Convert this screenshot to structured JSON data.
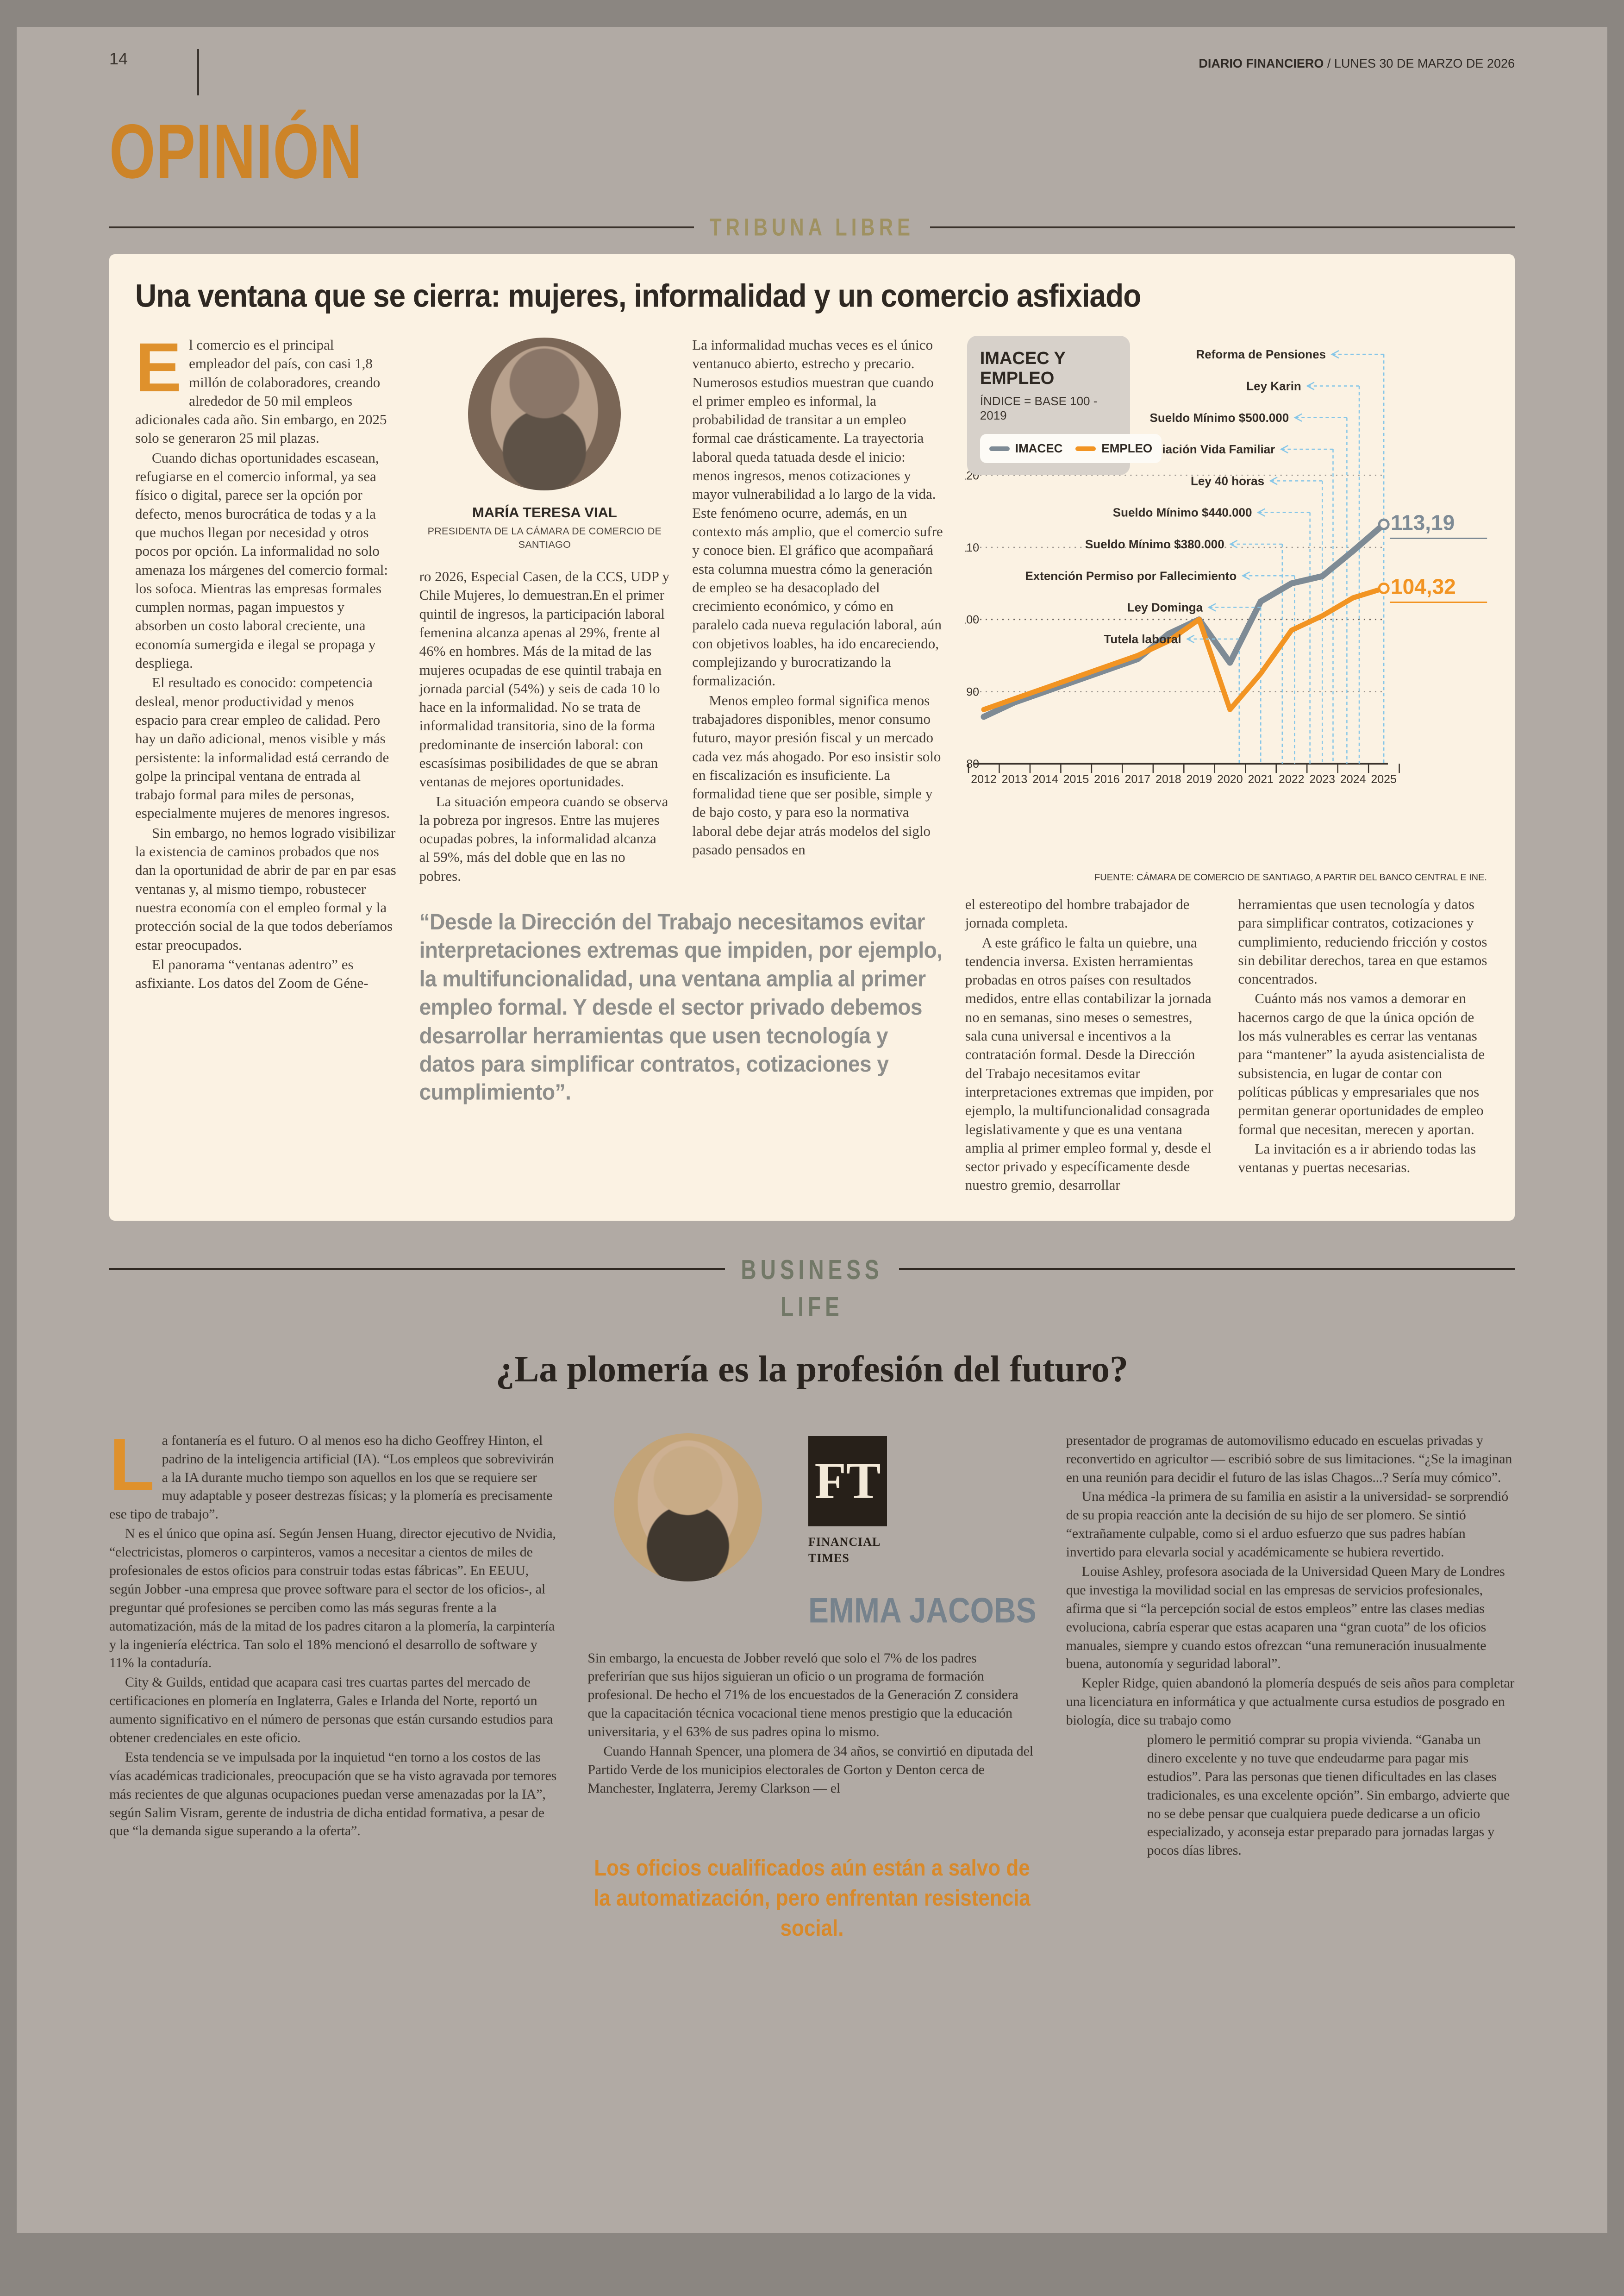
{
  "meta": {
    "page_number": "14",
    "brand": "DIARIO FINANCIERO",
    "date": " / LUNES 30 DE MARZO DE 2026"
  },
  "section": {
    "kicker": "OPINIÓN",
    "tribune": "TRIBUNA LIBRE"
  },
  "article1": {
    "headline": "Una ventana que se cierra: mujeres, informalidad y un comercio asfixiado",
    "drop_cap": "E",
    "author": {
      "name": "MARÍA TERESA VIAL",
      "role": "PRESIDENTA DE LA CÁMARA DE COMERCIO DE SANTIAGO"
    },
    "c1": [
      "l comercio es el principal empleador del país, con casi 1,8 millón de colaboradores, creando alrededor de 50 mil empleos adicionales cada año. Sin embargo, en 2025 solo se generaron 25 mil plazas.",
      "Cuando dichas oportunidades escasean, refugiarse en el comercio informal, ya sea físico o digital, parece ser la opción por defecto, menos burocrática de todas y a la que muchos llegan por necesidad y otros pocos por opción. La informalidad no solo amenaza los márgenes del comercio formal: los sofoca. Mientras las empresas formales cumplen normas, pagan impuestos y absorben un costo laboral creciente, una economía sumergida e ilegal se propaga y despliega.",
      "El resultado es conocido: competencia desleal, menor productividad y menos espacio para crear empleo de calidad. Pero hay un daño adicional, menos visible y más persistente: la informalidad está cerrando de golpe la principal ventana de entrada al trabajo formal para miles de personas, especialmente mujeres de menores ingresos.",
      "Sin embargo, no hemos logrado visibilizar la existencia de caminos probados que nos dan la oportunidad de abrir de par en par esas ventanas y, al mismo tiempo, robustecer nuestra economía con el empleo formal y la protección social de la que todos deberíamos estar preocupados.",
      "El panorama “ventanas adentro” es asfixiante. Los datos del Zoom de Géne-"
    ],
    "c2": [
      "ro 2026, Especial Casen, de la CCS, UDP y Chile Mujeres, lo demuestran.En el primer quintil de ingresos, la participación laboral femenina alcanza apenas al 29%, frente al 46% en hombres. Más de la mitad de las mujeres ocupadas de ese quintil trabaja en jornada parcial (54%) y seis de cada 10 lo hace en la informalidad. No se trata de informalidad transitoria, sino de la forma predominante de inserción laboral: con escasísimas posibilidades de que se abran ventanas de mejores oportunidades.",
      "La situación empeora cuando se observa la pobreza por ingresos. Entre las mujeres ocupadas pobres, la informalidad alcanza al 59%, más del doble que en las no pobres."
    ],
    "c3": [
      "La informalidad muchas veces es el único ventanuco abierto, estrecho y precario. Numerosos estudios muestran que cuando el primer empleo es informal, la probabilidad de transitar a un empleo formal cae drásticamente. La trayectoria laboral queda tatuada desde el inicio: menos ingresos, menos cotizaciones y mayor vulnerabilidad a lo largo de la vida. Este fenómeno ocurre, además, en un contexto más amplio, que el comercio sufre y conoce bien. El gráfico que acompañará esta columna muestra cómo la generación de empleo se ha desacoplado del crecimiento económico, y cómo en paralelo cada nueva regulación laboral, aún con objetivos loables, ha ido encareciendo, complejizando y burocratizando la formalización.",
      "Menos empleo formal significa menos trabajadores disponibles, menor consumo futuro, mayor presión fiscal y un mercado cada vez más ahogado. Por eso insistir solo en fiscalización es insuficiente. La formalidad tiene que ser posible, simple y de bajo costo, y para eso la normativa laboral debe dejar atrás modelos del siglo pasado pensados en"
    ],
    "c4": [
      "el estereotipo del hombre trabajador de jornada completa.",
      "A este gráfico le falta un quiebre, una tendencia inversa. Existen herramientas probadas en otros países con resultados medidos, entre ellas contabilizar la jornada no en semanas, sino meses o semestres, sala cuna universal e incentivos a la contratación formal. Desde la Dirección del Trabajo necesitamos evitar interpretaciones extremas que impiden, por ejemplo, la multifuncionalidad consagrada legislativamente y que es una ventana amplia al primer empleo formal y, desde el sector privado y específicamente desde nuestro gremio, desarrollar"
    ],
    "c5": [
      "herramientas que usen tecnología y datos para simplificar contratos, cotizaciones y cumplimiento, reduciendo fricción y costos sin debilitar derechos, tarea en que estamos concentrados.",
      "Cuánto más nos vamos a demorar en hacernos cargo de que la única opción de los más vulnerables es cerrar las ventanas para “mantener” la ayuda asistencialista de subsistencia, en lugar de contar con políticas públicas y empresariales que nos permitan generar oportunidades de empleo formal que necesitan, merecen y aportan.",
      "La invitación es a ir abriendo todas las ventanas y puertas necesarias."
    ],
    "quote": "“Desde la Dirección del Trabajo necesitamos evitar interpretaciones extremas que impiden, por ejemplo, la multifuncionalidad, una ventana amplia al primer empleo formal. Y desde el sector privado debemos desarrollar herramientas que usen tecnología y datos para simplificar contratos, cotizaciones y cumplimiento”."
  },
  "chart_data": {
    "type": "line",
    "title": "IMACEC Y EMPLEO",
    "subtitle": "ÍNDICE = BASE 100 - 2019",
    "source": "FUENTE: CÁMARA DE COMERCIO DE SANTIAGO, A PARTIR DEL BANCO CENTRAL E INE.",
    "categories": [
      "2012",
      "2013",
      "2014",
      "2015",
      "2016",
      "2017",
      "2018",
      "2019",
      "2020",
      "2021",
      "2022",
      "2023",
      "2024",
      "2025"
    ],
    "ylim": [
      80,
      120
    ],
    "yticks": [
      80,
      90,
      100,
      110,
      120
    ],
    "grid": "dotted-horizontal",
    "legend_position": "top-left",
    "series": [
      {
        "name": "IMACEC",
        "color": "#7e8b95",
        "values": [
          86.5,
          88.5,
          90.0,
          91.5,
          93.0,
          94.5,
          98.0,
          100.0,
          94.0,
          102.5,
          105.0,
          106.0,
          109.5,
          113.19
        ],
        "end_label": "113,19"
      },
      {
        "name": "EMPLEO",
        "color": "#f29422",
        "values": [
          87.5,
          89.0,
          90.5,
          92.0,
          93.5,
          95.0,
          97.0,
          100.0,
          87.5,
          92.5,
          98.5,
          100.5,
          103.0,
          104.32
        ],
        "end_label": "104,32"
      }
    ],
    "annotation_color": "#85c6e8",
    "annotations": [
      {
        "label": "Reforma de Pensiones",
        "year": 2025.0
      },
      {
        "label": "Ley Karin",
        "year": 2024.2
      },
      {
        "label": "Sueldo Mínimo $500.000",
        "year": 2023.8
      },
      {
        "label": "Conciliación Vida Familiar",
        "year": 2023.35
      },
      {
        "label": "Ley 40 horas",
        "year": 2023.0
      },
      {
        "label": "Sueldo Mínimo $440.000",
        "year": 2022.6
      },
      {
        "label": "Sueldo Mínimo $380.000",
        "year": 2021.7
      },
      {
        "label": "Extención Permiso por Fallecimiento",
        "year": 2022.1
      },
      {
        "label": "Ley Dominga",
        "year": 2021.0
      },
      {
        "label": "Tutela laboral",
        "year": 2020.3
      }
    ]
  },
  "section2": {
    "label_top": "BUSINESS",
    "label_bottom": "LIFE"
  },
  "article2": {
    "headline": "¿La plomería es la profesión del futuro?",
    "drop_cap": "L",
    "c1": [
      "a fontanería es el futuro. O al menos eso ha dicho Geoffrey Hinton, el padrino de la inteligencia artificial (IA). “Los empleos que sobrevivirán a la IA durante mucho tiempo son aquellos en los que se requiere ser muy adaptable y poseer destrezas físicas; y la plomería es precisamente ese tipo de trabajo”.",
      "N es el único que opina así. Según Jensen Huang, director ejecutivo de Nvidia, “electricistas, plomeros o carpinteros, vamos a necesitar a cientos de miles de profesionales de estos oficios para construir todas estas fábricas”. En EEUU, según Jobber -una empresa que provee software para el sector de los oficios-, al preguntar qué profesiones se perciben como las más seguras frente a la automatización, más de la mitad de los padres citaron a la plomería, la carpintería y la ingeniería eléctrica. Tan solo el 18% mencionó el desarrollo de software y 11% la contaduría.",
      "City & Guilds, entidad que acapara casi tres cuartas partes del mercado de certificaciones en plomería en Inglaterra, Gales e Irlanda del Norte, reportó un aumento significativo en el número de personas que están cursando estudios para obtener credenciales en este oficio.",
      "Esta tendencia se ve impulsada por la inquietud “en torno a los costos de las vías académicas tradicionales, preocupación que se ha visto agravada por temores más recientes de que algunas ocupaciones puedan verse amenazadas por la IA”, según Salim Visram, gerente de industria de dicha entidad formativa, a pesar de que “la demanda sigue superando a la oferta”."
    ],
    "ft": {
      "logo": "FT",
      "line1": "FINANCIAL",
      "line2": "TIMES"
    },
    "author": "EMMA JACOBS",
    "c2": [
      "Sin embargo, la encuesta de Jobber reveló que solo el 7% de los padres preferirían que sus hijos siguieran un oficio o un programa de formación profesional. De hecho el 71% de los encuestados de la Generación Z considera que la capacitación técnica vocacional tiene menos prestigio que la educación universitaria, y el 63% de sus padres opina lo mismo.",
      "Cuando Hannah Spencer, una plomera de 34 años, se convirtió en diputada del Partido Verde de los municipios electorales de Gorton y Denton cerca de Manchester, Inglaterra, Jeremy Clarkson — el"
    ],
    "c3": [
      "presentador de programas de automovilismo educado en escuelas privadas y reconvertido en agricultor — escribió sobre de sus limitaciones. “¿Se la imaginan en una reunión para decidir el futuro de las islas Chagos...? Sería muy cómico”.",
      "Una médica -la primera de su familia en asistir a la universidad- se sorprendió de su propia reacción ante la decisión de su hijo de ser plomero. Se sintió “extrañamente culpable, como si el arduo esfuerzo que sus padres habían invertido para elevarla social y académicamente se hubiera revertido.",
      "Louise Ashley, profesora asociada de la Universidad Queen Mary de Londres que investiga la movilidad social en las empresas de servicios profesionales, afirma que si “la percepción social de estos empleos” entre las clases medias evoluciona, cabría esperar que estas acaparen una “gran cuota” de los oficios manuales, siempre y cuando estos ofrezcan “una remuneración inusualmente buena, autonomía y seguridad laboral”.",
      "Kepler Ridge, quien abandonó la plomería después de seis años para completar una licenciatura en informática y que actualmente cursa estudios de posgrado en biología, dice su trabajo como"
    ],
    "c3_indent": "plomero le permitió comprar su propia vivienda. “Ganaba un dinero excelente y no tuve que endeudarme para pagar mis estudios”. Para las personas que tienen dificultades en las clases tradicionales, es una excelente opción”. Sin embargo, advierte que no se debe pensar que cualquiera puede dedicarse a un oficio especializado, y aconseja estar preparado para jornadas largas y pocos días libres.",
    "quote": "Los oficios cualificados aún están a salvo de la automatización, pero enfrentan resistencia social."
  },
  "colors": {
    "accent_orange": "#d8892a",
    "chart_orange": "#f29422",
    "chart_gray": "#7e8b95",
    "cream": "#fbf2e3",
    "page": "#b1aaa4"
  }
}
